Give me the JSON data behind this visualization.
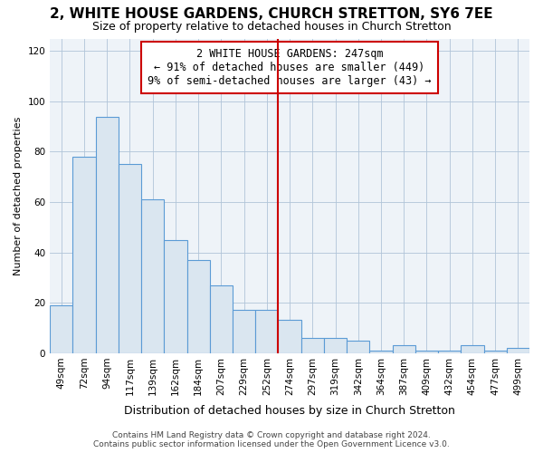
{
  "title": "2, WHITE HOUSE GARDENS, CHURCH STRETTON, SY6 7EE",
  "subtitle": "Size of property relative to detached houses in Church Stretton",
  "xlabel": "Distribution of detached houses by size in Church Stretton",
  "ylabel": "Number of detached properties",
  "footer_line1": "Contains HM Land Registry data © Crown copyright and database right 2024.",
  "footer_line2": "Contains public sector information licensed under the Open Government Licence v3.0.",
  "bar_labels": [
    "49sqm",
    "72sqm",
    "94sqm",
    "117sqm",
    "139sqm",
    "162sqm",
    "184sqm",
    "207sqm",
    "229sqm",
    "252sqm",
    "274sqm",
    "297sqm",
    "319sqm",
    "342sqm",
    "364sqm",
    "387sqm",
    "409sqm",
    "432sqm",
    "454sqm",
    "477sqm",
    "499sqm"
  ],
  "bar_values": [
    19,
    78,
    94,
    75,
    61,
    45,
    37,
    27,
    17,
    17,
    13,
    6,
    6,
    5,
    1,
    3,
    1,
    1,
    3,
    1,
    2
  ],
  "bar_color": "#dae6f0",
  "bar_edge_color": "#5b9bd5",
  "vline_index": 9,
  "vline_color": "#cc0000",
  "annotation_title": "2 WHITE HOUSE GARDENS: 247sqm",
  "annotation_line1": "← 91% of detached houses are smaller (449)",
  "annotation_line2": "9% of semi-detached houses are larger (43) →",
  "ylim": [
    0,
    125
  ],
  "yticks": [
    0,
    20,
    40,
    60,
    80,
    100,
    120
  ],
  "title_fontsize": 11,
  "subtitle_fontsize": 9,
  "xlabel_fontsize": 9,
  "ylabel_fontsize": 8,
  "tick_fontsize": 7.5,
  "footer_fontsize": 6.5,
  "annot_fontsize": 8.5
}
